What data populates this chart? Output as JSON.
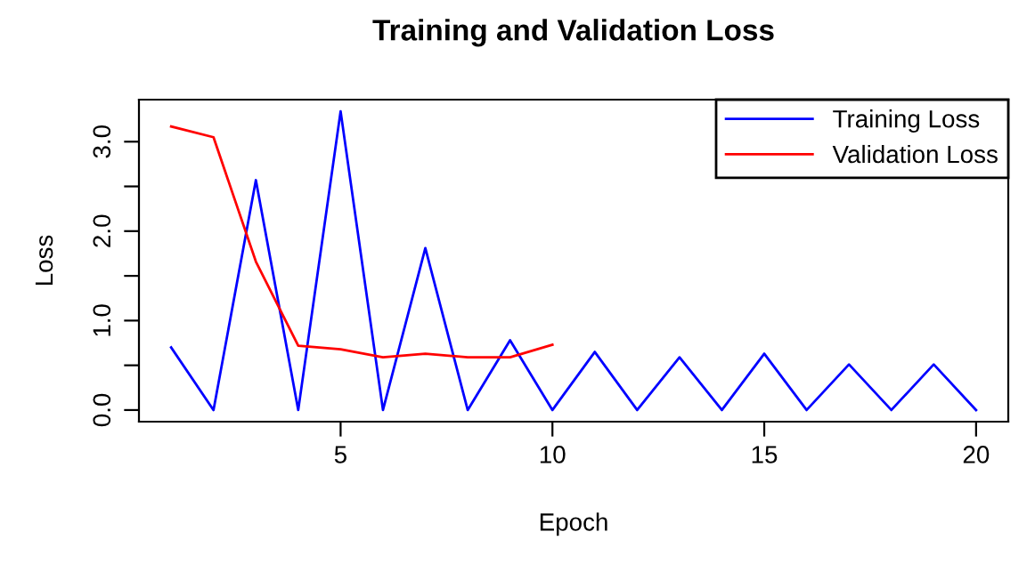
{
  "chart_data": {
    "type": "line",
    "title": "Training and Validation Loss",
    "xlabel": "Epoch",
    "ylabel": "Loss",
    "x": [
      1,
      2,
      3,
      4,
      5,
      6,
      7,
      8,
      9,
      10,
      11,
      12,
      13,
      14,
      15,
      16,
      17,
      18,
      19,
      20
    ],
    "series": [
      {
        "name": "Training Loss",
        "color": "#0000ff",
        "values": [
          0.7,
          0,
          2.57,
          0,
          3.34,
          0,
          1.81,
          0,
          0.78,
          0,
          0.65,
          0,
          0.59,
          0,
          0.63,
          0,
          0.51,
          0,
          0.51,
          0
        ]
      },
      {
        "name": "Validation Loss",
        "color": "#ff0000",
        "x": [
          1,
          2,
          3,
          4,
          5,
          6,
          7,
          8,
          9,
          10
        ],
        "values": [
          3.17,
          3.05,
          1.66,
          0.72,
          0.68,
          0.59,
          0.63,
          0.59,
          0.59,
          0.73
        ]
      }
    ],
    "xlim": [
      0.24,
      20.76
    ],
    "ylim": [
      -0.13,
      3.47
    ],
    "xticks": [
      5,
      10,
      15,
      20
    ],
    "yticks": [
      {
        "value": 0,
        "label": "0.0"
      },
      {
        "value": 0.5,
        "label": null
      },
      {
        "value": 1,
        "label": "1.0"
      },
      {
        "value": 1.5,
        "label": null
      },
      {
        "value": 2,
        "label": "2.0"
      },
      {
        "value": 2.5,
        "label": null
      },
      {
        "value": 3,
        "label": "3.0"
      }
    ],
    "grid": false,
    "legend": "top right",
    "marker": "none",
    "line_style": "solid"
  }
}
